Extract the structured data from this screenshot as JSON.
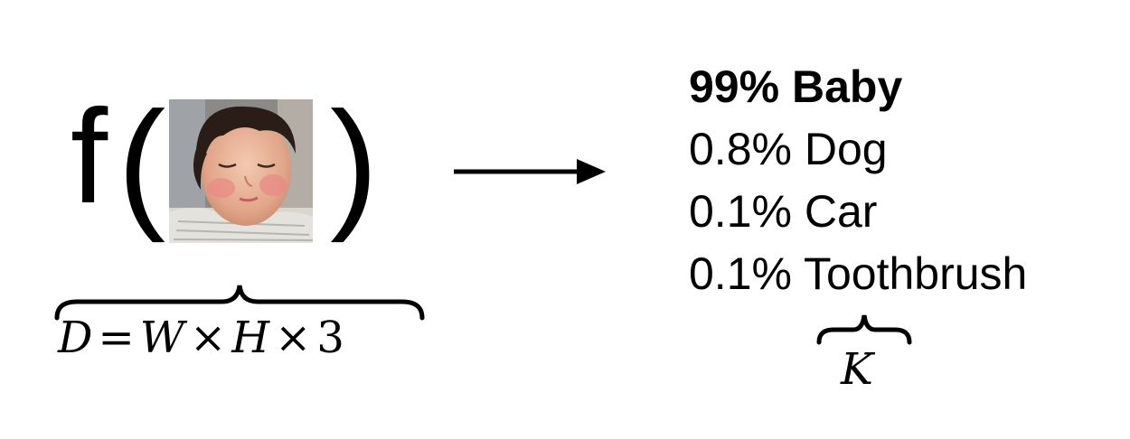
{
  "function": {
    "name": "f",
    "open_paren": "(",
    "close_paren": ")"
  },
  "input_image": {
    "description_icon": "sleeping-baby-photo"
  },
  "input_dimension": {
    "lhs": "D",
    "equals": "=",
    "w": "W",
    "times1": "×",
    "h": "H",
    "times2": "×",
    "channels": "3"
  },
  "output": {
    "predictions": [
      {
        "percent": "99%",
        "label": "Baby"
      },
      {
        "percent": "0.8%",
        "label": "Dog"
      },
      {
        "percent": "0.1%",
        "label": "Car"
      },
      {
        "percent": "0.1%",
        "label": "Toothbrush"
      }
    ],
    "count_symbol": "K"
  }
}
